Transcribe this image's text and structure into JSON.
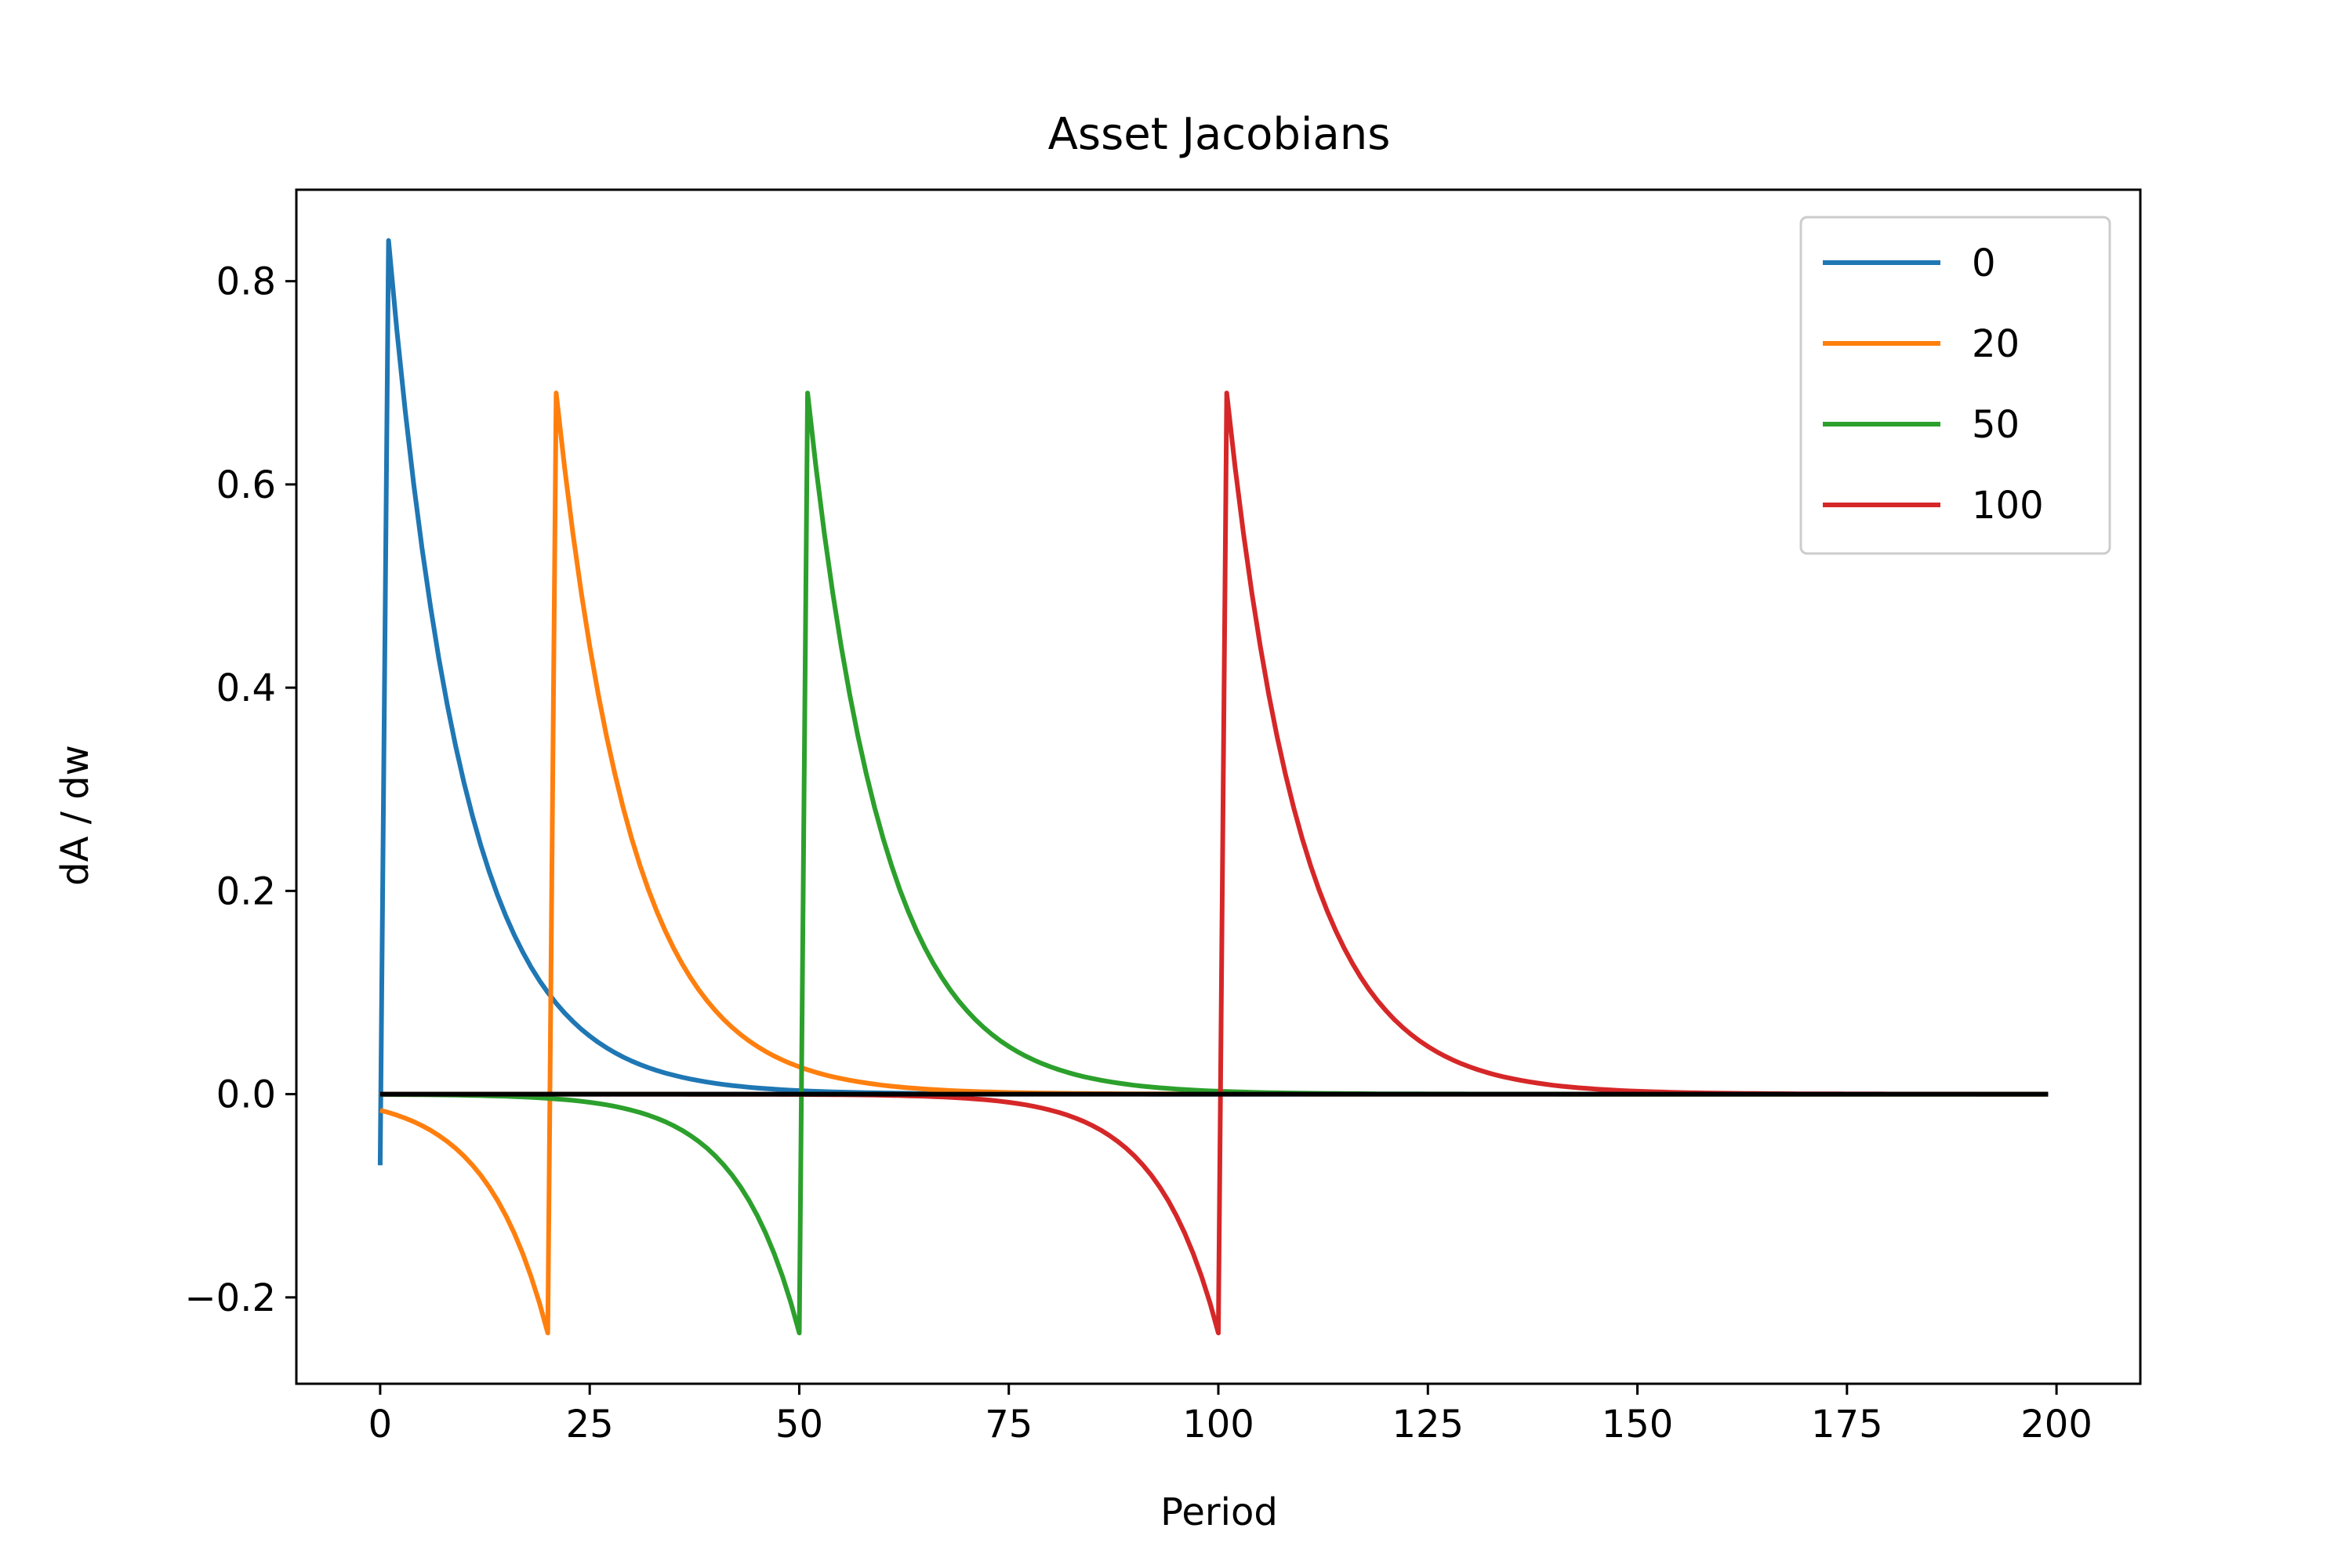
{
  "chart_data": {
    "type": "line",
    "title": "Asset Jacobians",
    "xlabel": "Period",
    "ylabel": "dA / dw",
    "xlim": [
      -10,
      210
    ],
    "ylim": [
      -0.285,
      0.89
    ],
    "xticks": [
      0,
      25,
      50,
      75,
      100,
      125,
      150,
      175,
      200
    ],
    "yticks": [
      -0.2,
      0.0,
      0.2,
      0.4,
      0.6,
      0.8
    ],
    "ytick_labels": [
      "−0.2",
      "0.0",
      "0.2",
      "0.4",
      "0.6",
      "0.8"
    ],
    "grid": false,
    "legend_position": "top-right",
    "reference_line": {
      "y": 0.0,
      "color": "#000000",
      "x_range": [
        0,
        199
      ]
    },
    "series": [
      {
        "name": "0",
        "color": "#1f77b4",
        "shock_period": 0,
        "pre_value": null,
        "start_value": -0.07,
        "peak": 0.84
      },
      {
        "name": "20",
        "color": "#ff7f0e",
        "shock_period": 20,
        "pre_value": -0.235,
        "peak": 0.69
      },
      {
        "name": "50",
        "color": "#2ca02c",
        "shock_period": 50,
        "pre_value": -0.235,
        "peak": 0.69
      },
      {
        "name": "100",
        "color": "#d62728",
        "shock_period": 100,
        "pre_value": -0.235,
        "peak": 0.69
      }
    ]
  }
}
